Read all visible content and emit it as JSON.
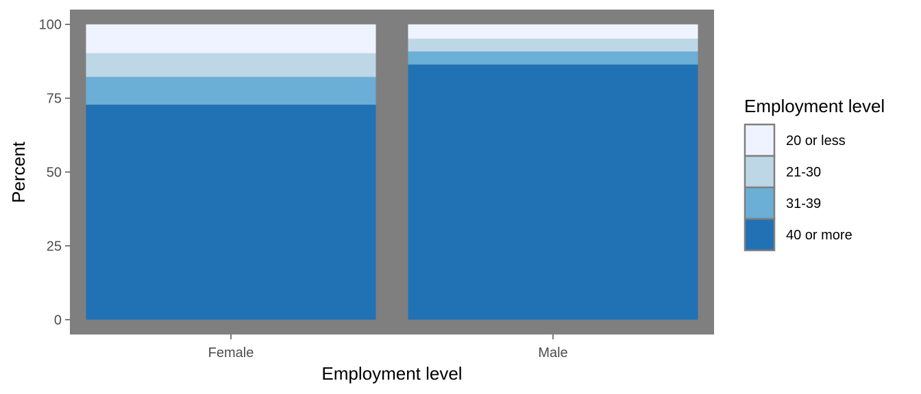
{
  "chart_data": {
    "type": "bar",
    "stacked": true,
    "categories": [
      "Female",
      "Male"
    ],
    "series": [
      {
        "name": "40 or more",
        "color": "#2171b5",
        "values": [
          72.8,
          86.4
        ]
      },
      {
        "name": "31-39",
        "color": "#6baed6",
        "values": [
          9.4,
          4.4
        ]
      },
      {
        "name": "21-30",
        "color": "#bdd7e7",
        "values": [
          8.0,
          4.3
        ]
      },
      {
        "name": "20 or less",
        "color": "#eff3ff",
        "values": [
          9.8,
          4.9
        ]
      }
    ],
    "xlabel": "Employment level",
    "ylabel": "Percent",
    "ylim": [
      -5,
      105
    ],
    "yticks": [
      0,
      25,
      50,
      75,
      100
    ],
    "ytick_labels": [
      "0",
      "25",
      "50",
      "75",
      "100"
    ],
    "legend": {
      "title": "Employment level",
      "position": "right",
      "order": [
        "20 or less",
        "21-30",
        "31-39",
        "40 or more"
      ]
    },
    "panel_background": "#7f7f7f",
    "grid": false
  }
}
